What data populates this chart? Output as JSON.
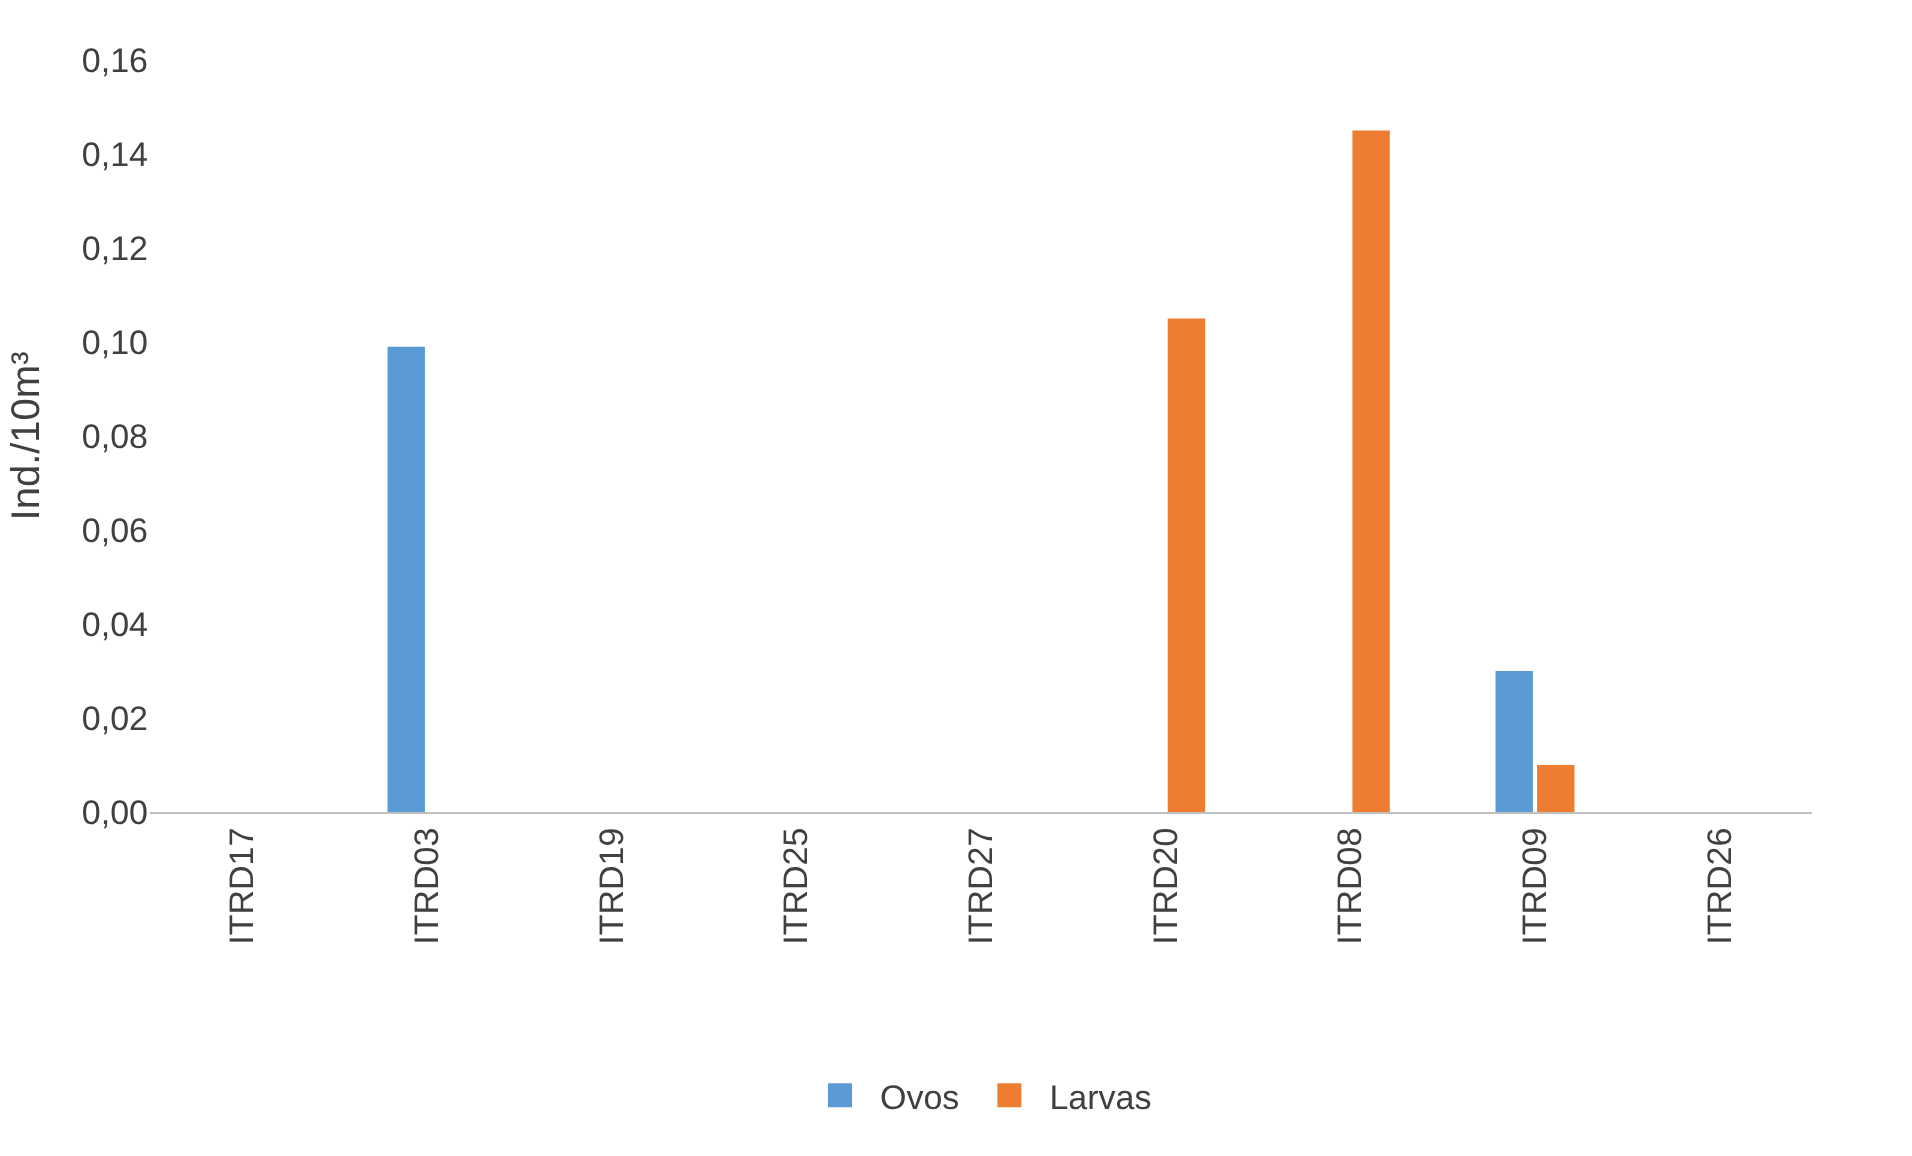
{
  "chart_data": {
    "type": "bar",
    "ylabel": "Ind./10m³",
    "categories": [
      "ITRD17",
      "ITRD03",
      "ITRD19",
      "ITRD25",
      "ITRD27",
      "ITRD20",
      "ITRD08",
      "ITRD09",
      "ITRD26"
    ],
    "series": [
      {
        "name": "Ovos",
        "color": "#5b9bd5",
        "values": [
          null,
          0.099,
          null,
          null,
          null,
          null,
          null,
          0.03,
          null
        ]
      },
      {
        "name": "Larvas",
        "color": "#ed7d31",
        "values": [
          null,
          null,
          null,
          null,
          null,
          0.105,
          0.145,
          0.01,
          null
        ]
      }
    ],
    "ylim": [
      0,
      0.16
    ],
    "yticks": [
      {
        "value": 0,
        "label": "0,00"
      },
      {
        "value": 0.02,
        "label": "0,02"
      },
      {
        "value": 0.04,
        "label": "0,04"
      },
      {
        "value": 0.06,
        "label": "0,06"
      },
      {
        "value": 0.08,
        "label": "0,08"
      },
      {
        "value": 0.1,
        "label": "0,10"
      },
      {
        "value": 0.12,
        "label": "0,12"
      },
      {
        "value": 0.14,
        "label": "0,14"
      },
      {
        "value": 0.16,
        "label": "0,16"
      }
    ],
    "grid": false,
    "legend": "bottom"
  }
}
